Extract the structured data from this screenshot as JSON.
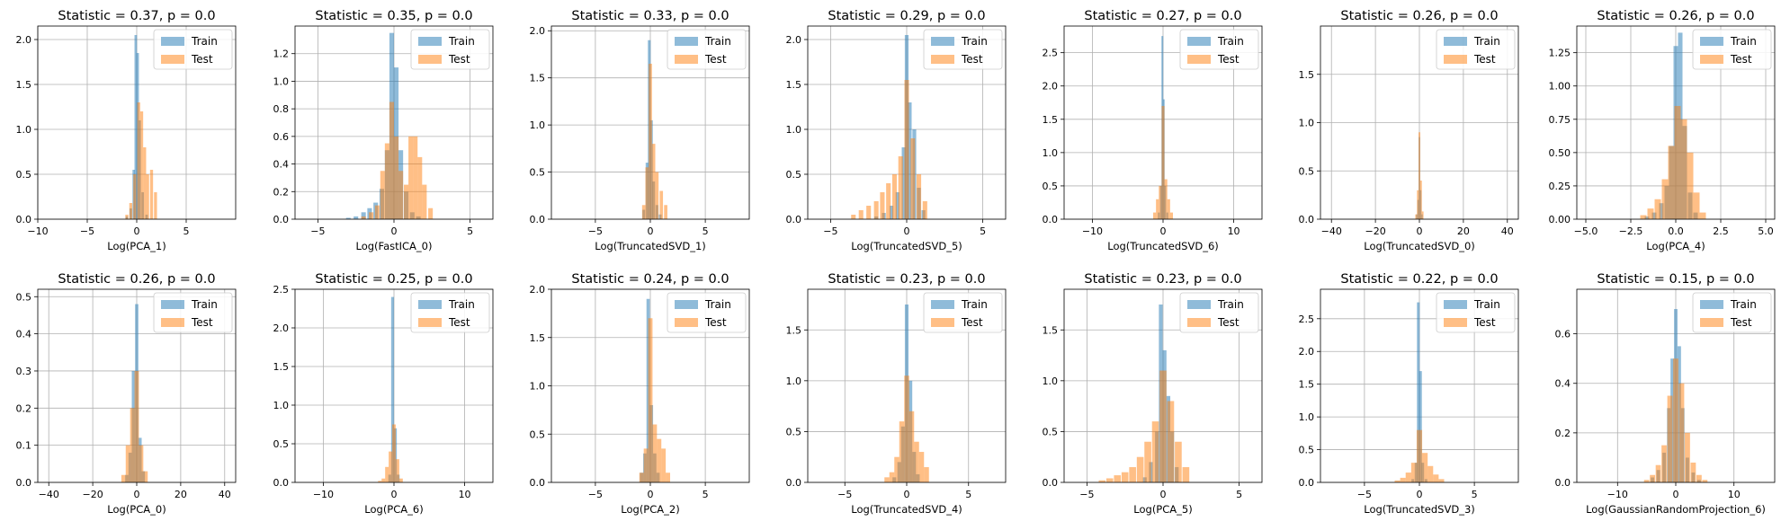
{
  "colors": {
    "train": "#1f77b4",
    "test": "#ff7f0e",
    "grid": "#b0b0b0"
  },
  "chart_data": [
    {
      "type": "bar",
      "title": "Statistic = 0.37, p = 0.0",
      "xlabel": "Log(PCA_1)",
      "xlim": [
        -10,
        10
      ],
      "ylim": [
        0,
        2.15
      ],
      "xticks": [
        -10,
        -5,
        0,
        5
      ],
      "yticks": [
        0.0,
        0.5,
        1.0,
        1.5,
        2.0
      ],
      "legend": [
        "Train",
        "Test"
      ],
      "legend_loc": "upper right",
      "series": [
        {
          "name": "Train",
          "x": [
            -1.0,
            -0.6,
            -0.3,
            -0.1,
            0.1,
            0.3,
            0.6,
            1.0
          ],
          "values": [
            0.03,
            0.12,
            0.55,
            2.05,
            1.85,
            1.1,
            0.3,
            0.05
          ],
          "width": 0.25
        },
        {
          "name": "Test",
          "x": [
            -1.0,
            -0.6,
            -0.2,
            0.2,
            0.5,
            0.8,
            1.1,
            1.5,
            1.9
          ],
          "values": [
            0.05,
            0.18,
            0.5,
            1.3,
            1.2,
            0.8,
            0.5,
            0.55,
            0.3
          ],
          "width": 0.3
        }
      ]
    },
    {
      "type": "bar",
      "title": "Statistic = 0.35, p = 0.0",
      "xlabel": "Log(FastICA_0)",
      "xlim": [
        -6.5,
        6.5
      ],
      "ylim": [
        0,
        1.4
      ],
      "xticks": [
        -5,
        0,
        5
      ],
      "yticks": [
        0.0,
        0.2,
        0.4,
        0.6,
        0.8,
        1.0,
        1.2
      ],
      "legend": [
        "Train",
        "Test"
      ],
      "legend_loc": "upper right",
      "series": [
        {
          "name": "Train",
          "x": [
            -3.0,
            -2.5,
            -2.0,
            -1.6,
            -1.2,
            -0.8,
            -0.45,
            -0.15,
            0.15,
            0.45,
            0.8,
            1.2,
            1.6
          ],
          "values": [
            0.01,
            0.02,
            0.05,
            0.08,
            0.12,
            0.22,
            0.5,
            1.35,
            1.1,
            0.5,
            0.2,
            0.05,
            0.02
          ],
          "width": 0.3
        },
        {
          "name": "Test",
          "x": [
            -2.0,
            -1.5,
            -1.1,
            -0.75,
            -0.45,
            -0.15,
            0.15,
            0.45,
            0.8,
            1.1,
            1.4,
            1.7,
            2.0,
            2.4
          ],
          "values": [
            0.02,
            0.05,
            0.1,
            0.35,
            0.55,
            0.85,
            0.6,
            0.35,
            0.25,
            0.6,
            0.6,
            0.45,
            0.25,
            0.08
          ],
          "width": 0.3
        }
      ]
    },
    {
      "type": "bar",
      "title": "Statistic = 0.33, p = 0.0",
      "xlabel": "Log(TruncatedSVD_1)",
      "xlim": [
        -9,
        9
      ],
      "ylim": [
        0,
        2.05
      ],
      "xticks": [
        -5,
        0,
        5
      ],
      "yticks": [
        0.0,
        0.5,
        1.0,
        1.5,
        2.0
      ],
      "legend": [
        "Train",
        "Test"
      ],
      "legend_loc": "upper right",
      "series": [
        {
          "name": "Train",
          "x": [
            -0.6,
            -0.3,
            -0.1,
            0.1,
            0.3,
            0.6,
            0.9
          ],
          "values": [
            0.1,
            0.6,
            1.9,
            1.05,
            0.4,
            0.15,
            0.05
          ],
          "width": 0.25
        },
        {
          "name": "Test",
          "x": [
            -0.6,
            -0.3,
            0.0,
            0.3,
            0.6,
            1.0,
            1.4
          ],
          "values": [
            0.15,
            0.55,
            1.65,
            0.8,
            0.5,
            0.3,
            0.15
          ],
          "width": 0.3
        }
      ]
    },
    {
      "type": "bar",
      "title": "Statistic = 0.29, p = 0.0",
      "xlabel": "Log(TruncatedSVD_5)",
      "xlim": [
        -6.5,
        6.5
      ],
      "ylim": [
        0,
        2.15
      ],
      "xticks": [
        -5,
        0,
        5
      ],
      "yticks": [
        0.0,
        0.5,
        1.0,
        1.5,
        2.0
      ],
      "legend": [
        "Train",
        "Test"
      ],
      "legend_loc": "upper right",
      "series": [
        {
          "name": "Train",
          "x": [
            -2.0,
            -1.5,
            -1.0,
            -0.6,
            -0.2,
            0.0,
            0.2,
            0.5,
            0.8,
            1.1
          ],
          "values": [
            0.03,
            0.07,
            0.15,
            0.3,
            0.8,
            2.05,
            1.3,
            1.0,
            0.35,
            0.1
          ],
          "width": 0.25
        },
        {
          "name": "Test",
          "x": [
            -3.5,
            -3.0,
            -2.5,
            -2.0,
            -1.6,
            -1.2,
            -0.8,
            -0.4,
            0.0,
            0.4,
            0.8,
            1.2
          ],
          "values": [
            0.05,
            0.1,
            0.15,
            0.2,
            0.3,
            0.4,
            0.5,
            0.7,
            1.55,
            0.9,
            0.5,
            0.2
          ],
          "width": 0.3
        }
      ]
    },
    {
      "type": "bar",
      "title": "Statistic = 0.27, p = 0.0",
      "xlabel": "Log(TruncatedSVD_6)",
      "xlim": [
        -14,
        14
      ],
      "ylim": [
        0,
        2.9
      ],
      "xticks": [
        -10,
        0,
        10
      ],
      "yticks": [
        0.0,
        0.5,
        1.0,
        1.5,
        2.0,
        2.5
      ],
      "legend": [
        "Train",
        "Test"
      ],
      "legend_loc": "upper right",
      "series": [
        {
          "name": "Train",
          "x": [
            -0.6,
            -0.3,
            -0.1,
            0.1,
            0.3,
            0.6
          ],
          "values": [
            0.1,
            0.5,
            2.75,
            1.8,
            0.5,
            0.1
          ],
          "width": 0.25
        },
        {
          "name": "Test",
          "x": [
            -1.2,
            -0.8,
            -0.4,
            0.0,
            0.4,
            0.8,
            1.2
          ],
          "values": [
            0.1,
            0.3,
            0.5,
            1.7,
            0.6,
            0.3,
            0.1
          ],
          "width": 0.4
        }
      ]
    },
    {
      "type": "bar",
      "title": "Statistic = 0.26, p = 0.0",
      "xlabel": "Log(TruncatedSVD_0)",
      "xlim": [
        -45,
        45
      ],
      "ylim": [
        0,
        2.0
      ],
      "xticks": [
        -40,
        -20,
        0,
        20,
        40
      ],
      "yticks": [
        0.0,
        0.5,
        1.0,
        1.5
      ],
      "legend": [
        "Train",
        "Test"
      ],
      "legend_loc": "upper right",
      "series": [
        {
          "name": "Train",
          "x": [
            -1.2,
            -0.6,
            0.0,
            0.6,
            1.2
          ],
          "values": [
            0.05,
            0.2,
            0.85,
            0.3,
            0.05
          ],
          "width": 0.6
        },
        {
          "name": "Test",
          "x": [
            -1.5,
            -0.75,
            0.0,
            0.75,
            1.5
          ],
          "values": [
            0.05,
            0.3,
            0.9,
            0.4,
            0.08
          ],
          "width": 0.75
        }
      ]
    },
    {
      "type": "bar",
      "title": "Statistic = 0.26, p = 0.0",
      "xlabel": "Log(PCA_4)",
      "xlim": [
        -5.5,
        5.5
      ],
      "ylim": [
        0,
        1.45
      ],
      "xticks": [
        -5.0,
        -2.5,
        0.0,
        2.5,
        5.0
      ],
      "yticks": [
        0.0,
        0.25,
        0.5,
        0.75,
        1.0,
        1.25
      ],
      "legend": [
        "Train",
        "Test"
      ],
      "legend_loc": "upper right",
      "series": [
        {
          "name": "Train",
          "x": [
            -1.6,
            -1.2,
            -0.8,
            -0.5,
            -0.25,
            0.0,
            0.25,
            0.5,
            0.8,
            1.1
          ],
          "values": [
            0.02,
            0.05,
            0.12,
            0.25,
            0.55,
            1.3,
            1.4,
            0.7,
            0.2,
            0.05
          ],
          "width": 0.25
        },
        {
          "name": "Test",
          "x": [
            -1.8,
            -1.4,
            -1.0,
            -0.6,
            -0.25,
            0.1,
            0.45,
            0.8,
            1.15,
            1.5
          ],
          "values": [
            0.03,
            0.08,
            0.15,
            0.3,
            0.55,
            0.85,
            0.75,
            0.5,
            0.2,
            0.05
          ],
          "width": 0.35
        }
      ]
    },
    {
      "type": "bar",
      "title": "Statistic = 0.26, p = 0.0",
      "xlabel": "Log(PCA_0)",
      "xlim": [
        -45,
        45
      ],
      "ylim": [
        0,
        0.52
      ],
      "xticks": [
        -40,
        -20,
        0,
        20,
        40
      ],
      "yticks": [
        0.0,
        0.1,
        0.2,
        0.3,
        0.4,
        0.5
      ],
      "legend": [
        "Train",
        "Test"
      ],
      "legend_loc": "upper right",
      "series": [
        {
          "name": "Train",
          "x": [
            -4.5,
            -3.0,
            -1.5,
            0.0,
            1.5,
            3.0
          ],
          "values": [
            0.02,
            0.08,
            0.3,
            0.48,
            0.12,
            0.03
          ],
          "width": 1.5
        },
        {
          "name": "Test",
          "x": [
            -6,
            -4,
            -2,
            0,
            2,
            4
          ],
          "values": [
            0.02,
            0.1,
            0.2,
            0.3,
            0.1,
            0.03
          ],
          "width": 2.0
        }
      ]
    },
    {
      "type": "bar",
      "title": "Statistic = 0.25, p = 0.0",
      "xlabel": "Log(PCA_6)",
      "xlim": [
        -14,
        14
      ],
      "ylim": [
        0,
        2.5
      ],
      "xticks": [
        -10,
        0,
        10
      ],
      "yticks": [
        0.0,
        0.5,
        1.0,
        1.5,
        2.0,
        2.5
      ],
      "legend": [
        "Train",
        "Test"
      ],
      "legend_loc": "upper right",
      "series": [
        {
          "name": "Train",
          "x": [
            -0.6,
            -0.2,
            0.2,
            0.6
          ],
          "values": [
            0.1,
            2.4,
            0.7,
            0.1
          ],
          "width": 0.4
        },
        {
          "name": "Test",
          "x": [
            -2.0,
            -1.5,
            -1.0,
            -0.5,
            0.0,
            0.5,
            1.0
          ],
          "values": [
            0.02,
            0.05,
            0.2,
            0.4,
            0.75,
            0.3,
            0.05
          ],
          "width": 0.5
        }
      ]
    },
    {
      "type": "bar",
      "title": "Statistic = 0.24, p = 0.0",
      "xlabel": "Log(PCA_2)",
      "xlim": [
        -9,
        9
      ],
      "ylim": [
        0,
        2.0
      ],
      "xticks": [
        -5,
        0,
        5
      ],
      "yticks": [
        0.0,
        0.5,
        1.0,
        1.5,
        2.0
      ],
      "legend": [
        "Train",
        "Test"
      ],
      "legend_loc": "upper right",
      "series": [
        {
          "name": "Train",
          "x": [
            -0.8,
            -0.5,
            -0.2,
            0.1,
            0.4,
            0.7
          ],
          "values": [
            0.1,
            0.3,
            1.9,
            0.8,
            0.3,
            0.1
          ],
          "width": 0.3
        },
        {
          "name": "Test",
          "x": [
            -0.8,
            -0.4,
            0.0,
            0.4,
            0.8,
            1.2,
            1.6
          ],
          "values": [
            0.1,
            0.35,
            1.7,
            0.6,
            0.45,
            0.35,
            0.1
          ],
          "width": 0.4
        }
      ]
    },
    {
      "type": "bar",
      "title": "Statistic = 0.23, p = 0.0",
      "xlabel": "Log(TruncatedSVD_4)",
      "xlim": [
        -8,
        8
      ],
      "ylim": [
        0,
        1.9
      ],
      "xticks": [
        -5,
        0,
        5
      ],
      "yticks": [
        0.0,
        0.5,
        1.0,
        1.5
      ],
      "legend": [
        "Train",
        "Test"
      ],
      "legend_loc": "upper right",
      "series": [
        {
          "name": "Train",
          "x": [
            -1.0,
            -0.6,
            -0.3,
            0.0,
            0.3,
            0.6,
            0.9
          ],
          "values": [
            0.05,
            0.2,
            0.55,
            1.75,
            1.0,
            0.3,
            0.08
          ],
          "width": 0.3
        },
        {
          "name": "Test",
          "x": [
            -1.6,
            -1.2,
            -0.8,
            -0.4,
            0.0,
            0.4,
            0.8,
            1.2,
            1.6
          ],
          "values": [
            0.05,
            0.1,
            0.25,
            0.6,
            1.05,
            0.7,
            0.4,
            0.3,
            0.15
          ],
          "width": 0.4
        }
      ]
    },
    {
      "type": "bar",
      "title": "Statistic = 0.23, p = 0.0",
      "xlabel": "Log(PCA_5)",
      "xlim": [
        -6.5,
        6.5
      ],
      "ylim": [
        0,
        1.9
      ],
      "xticks": [
        -5,
        0,
        5
      ],
      "yticks": [
        0.0,
        0.5,
        1.0,
        1.5
      ],
      "legend": [
        "Train",
        "Test"
      ],
      "legend_loc": "upper right",
      "series": [
        {
          "name": "Train",
          "x": [
            -1.2,
            -0.8,
            -0.4,
            -0.15,
            0.1,
            0.35,
            0.6,
            0.9
          ],
          "values": [
            0.05,
            0.2,
            0.5,
            1.75,
            1.3,
            0.85,
            0.5,
            0.15
          ],
          "width": 0.25
        },
        {
          "name": "Test",
          "x": [
            -4.0,
            -3.5,
            -3.0,
            -2.5,
            -2.0,
            -1.5,
            -1.0,
            -0.5,
            0.0,
            0.5,
            1.0,
            1.5
          ],
          "values": [
            0.02,
            0.04,
            0.07,
            0.1,
            0.15,
            0.25,
            0.4,
            0.6,
            1.1,
            0.8,
            0.4,
            0.15
          ],
          "width": 0.45
        }
      ]
    },
    {
      "type": "bar",
      "title": "Statistic = 0.22, p = 0.0",
      "xlabel": "Log(TruncatedSVD_3)",
      "xlim": [
        -9,
        9
      ],
      "ylim": [
        0,
        2.95
      ],
      "xticks": [
        -5,
        0,
        5
      ],
      "yticks": [
        0.0,
        0.5,
        1.0,
        1.5,
        2.0,
        2.5
      ],
      "legend": [
        "Train",
        "Test"
      ],
      "legend_loc": "upper right",
      "series": [
        {
          "name": "Train",
          "x": [
            -0.6,
            -0.3,
            -0.1,
            0.1,
            0.3,
            0.6
          ],
          "values": [
            0.05,
            0.3,
            2.75,
            1.7,
            0.3,
            0.05
          ],
          "width": 0.25
        },
        {
          "name": "Test",
          "x": [
            -2.0,
            -1.5,
            -1.0,
            -0.5,
            0.0,
            0.5,
            1.0,
            1.5,
            2.0
          ],
          "values": [
            0.03,
            0.07,
            0.15,
            0.3,
            0.8,
            0.45,
            0.25,
            0.12,
            0.05
          ],
          "width": 0.5
        }
      ]
    },
    {
      "type": "bar",
      "title": "Statistic = 0.15, p = 0.0",
      "xlabel": "Log(GaussianRandomProjection_6)",
      "xlim": [
        -17,
        17
      ],
      "ylim": [
        0,
        0.78
      ],
      "xticks": [
        -10,
        0,
        10
      ],
      "yticks": [
        0.0,
        0.2,
        0.4,
        0.6
      ],
      "legend": [
        "Train",
        "Test"
      ],
      "legend_loc": "upper right",
      "series": [
        {
          "name": "Train",
          "x": [
            -4,
            -3,
            -2,
            -1.2,
            -0.6,
            0,
            0.6,
            1.2,
            2,
            3,
            4
          ],
          "values": [
            0.02,
            0.05,
            0.12,
            0.3,
            0.5,
            0.7,
            0.55,
            0.3,
            0.1,
            0.04,
            0.01
          ],
          "width": 0.6
        },
        {
          "name": "Test",
          "x": [
            -5,
            -4,
            -3,
            -2,
            -1,
            0,
            1,
            2,
            3,
            4,
            5
          ],
          "values": [
            0.01,
            0.03,
            0.07,
            0.15,
            0.35,
            0.5,
            0.4,
            0.2,
            0.08,
            0.03,
            0.01
          ],
          "width": 0.9
        }
      ]
    }
  ]
}
